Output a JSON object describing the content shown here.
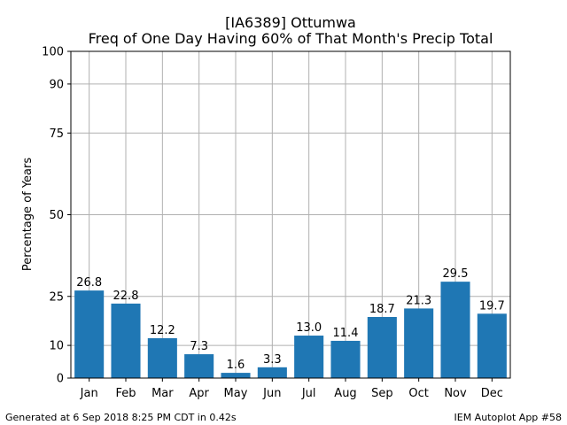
{
  "footer": {
    "generated": "Generated at 6 Sep 2018 8:25 PM CDT in 0.42s",
    "app": "IEM Autoplot App #58"
  },
  "chart_data": {
    "type": "bar",
    "title": "[IA6389] Ottumwa",
    "subtitle": "Freq of One Day Having 60% of That Month's Precip Total",
    "xlabel": "",
    "ylabel": "Percentage of Years",
    "categories": [
      "Jan",
      "Feb",
      "Mar",
      "Apr",
      "May",
      "Jun",
      "Jul",
      "Aug",
      "Sep",
      "Oct",
      "Nov",
      "Dec"
    ],
    "values": [
      26.8,
      22.8,
      12.2,
      7.3,
      1.6,
      3.3,
      13.0,
      11.4,
      18.7,
      21.3,
      29.5,
      19.7
    ],
    "data_labels": [
      "26.8",
      "22.8",
      "12.2",
      "7.3",
      "1.6",
      "3.3",
      "13.0",
      "11.4",
      "18.7",
      "21.3",
      "29.5",
      "19.7"
    ],
    "ylim": [
      0,
      100
    ],
    "yticks": [
      0,
      10,
      25,
      50,
      75,
      90,
      100
    ],
    "grid": true,
    "bar_color": "#1f77b4"
  }
}
